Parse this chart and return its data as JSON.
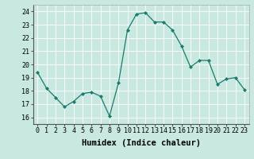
{
  "x": [
    0,
    1,
    2,
    3,
    4,
    5,
    6,
    7,
    8,
    9,
    10,
    11,
    12,
    13,
    14,
    15,
    16,
    17,
    18,
    19,
    20,
    21,
    22,
    23
  ],
  "y": [
    19.4,
    18.2,
    17.5,
    16.8,
    17.2,
    17.8,
    17.9,
    17.6,
    16.1,
    18.6,
    22.6,
    23.8,
    23.9,
    23.2,
    23.2,
    22.6,
    21.4,
    19.8,
    20.3,
    20.3,
    18.5,
    18.9,
    19.0,
    18.1
  ],
  "line_color": "#1a7a6e",
  "marker": "D",
  "marker_size": 2,
  "bg_color": "#c8e8e0",
  "grid_color": "#ffffff",
  "xlabel": "Humidex (Indice chaleur)",
  "xlim": [
    -0.5,
    23.5
  ],
  "ylim": [
    15.5,
    24.5
  ],
  "yticks": [
    16,
    17,
    18,
    19,
    20,
    21,
    22,
    23,
    24
  ],
  "xticks": [
    0,
    1,
    2,
    3,
    4,
    5,
    6,
    7,
    8,
    9,
    10,
    11,
    12,
    13,
    14,
    15,
    16,
    17,
    18,
    19,
    20,
    21,
    22,
    23
  ],
  "tick_fontsize": 6,
  "label_fontsize": 7.5
}
